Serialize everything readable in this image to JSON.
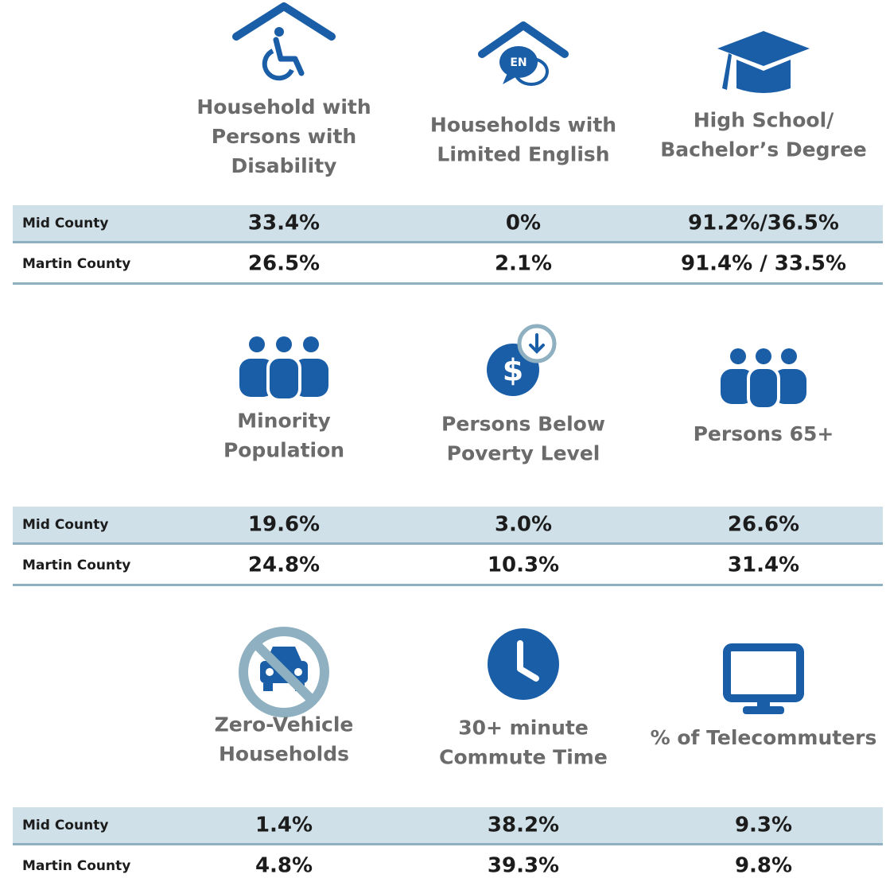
{
  "sections": [
    {
      "items": [
        {
          "label": [
            "Household with",
            "Persons with",
            "Disability"
          ]
        },
        {
          "label": [
            "Households with",
            "Limited English"
          ]
        },
        {
          "label": [
            "High School/",
            "Bachelor’s Degree"
          ]
        }
      ],
      "rows": [
        {
          "name": "Mid County",
          "values": [
            "33.4%",
            "0%",
            "91.2%/36.5%"
          ]
        },
        {
          "name": "Martin County",
          "values": [
            "26.5%",
            "2.1%",
            "91.4% / 33.5%"
          ]
        }
      ]
    },
    {
      "items": [
        {
          "label": [
            "Minority",
            "Population"
          ]
        },
        {
          "label": [
            "Persons Below",
            "Poverty Level"
          ]
        },
        {
          "label": [
            "Persons 65+"
          ]
        }
      ],
      "rows": [
        {
          "name": "Mid County",
          "values": [
            "19.6%",
            "3.0%",
            "26.6%"
          ]
        },
        {
          "name": "Martin County",
          "values": [
            "24.8%",
            "10.3%",
            "31.4%"
          ]
        }
      ]
    },
    {
      "items": [
        {
          "label": [
            "Zero-Vehicle",
            "Households"
          ]
        },
        {
          "label": [
            "30+ minute",
            "Commute Time"
          ]
        },
        {
          "label": [
            "% of Telecommuters"
          ]
        }
      ],
      "rows": [
        {
          "name": "Mid County",
          "values": [
            "1.4%",
            "38.2%",
            "9.3%"
          ]
        },
        {
          "name": "Martin County",
          "values": [
            "4.8%",
            "39.3%",
            "9.8%"
          ]
        }
      ]
    }
  ]
}
